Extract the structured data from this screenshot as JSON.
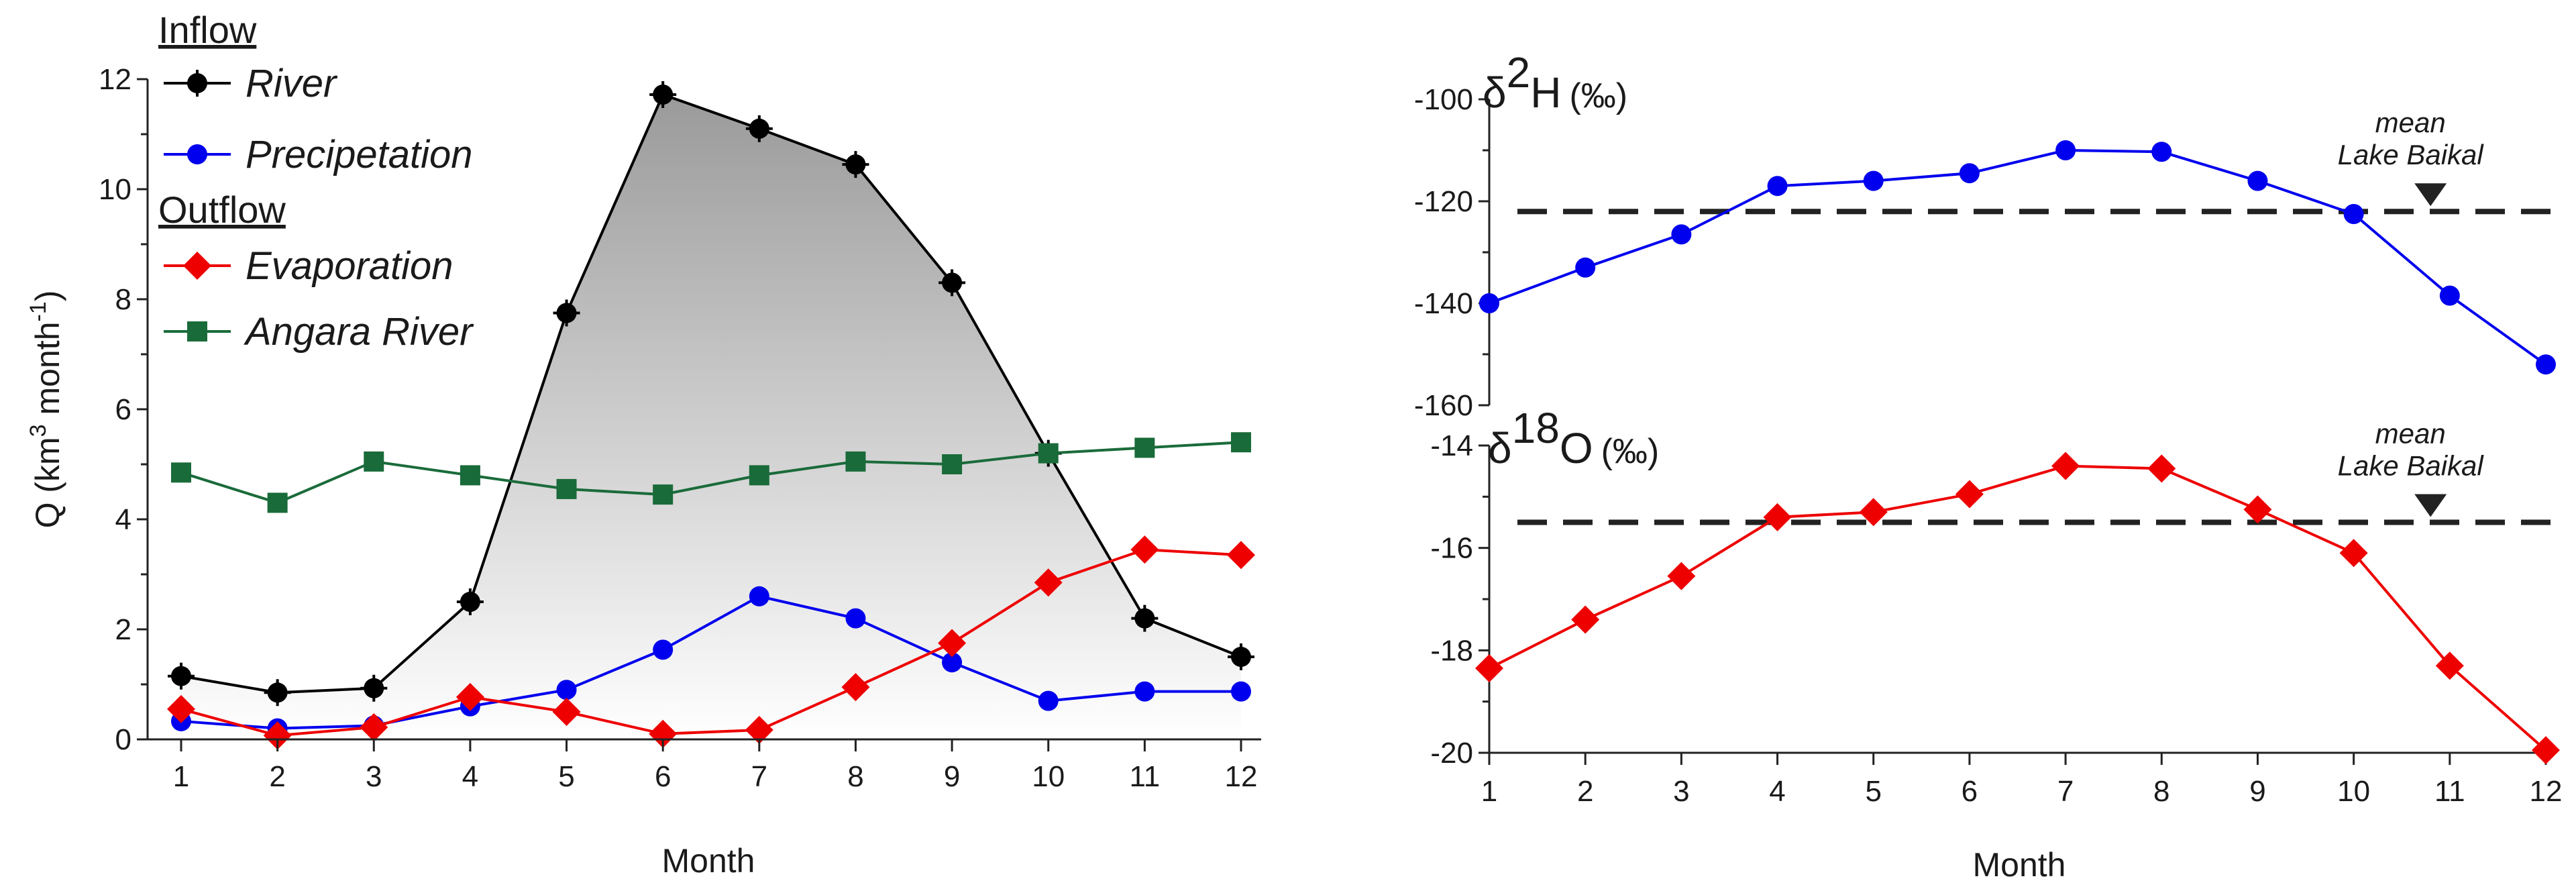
{
  "chart_data": [
    {
      "type": "line",
      "id": "discharge",
      "xlabel": "Month",
      "ylabel": "Q (km3 month-1)",
      "ylabel_parts": {
        "main": "Q (km",
        "sup1": "3",
        "mid": " month",
        "sup2": "-1",
        "end": ")"
      },
      "x": [
        1,
        2,
        3,
        4,
        5,
        6,
        7,
        8,
        9,
        10,
        11,
        12
      ],
      "xlim": [
        1,
        12
      ],
      "ylim": [
        0,
        12
      ],
      "yticks": [
        0,
        2,
        4,
        6,
        8,
        10,
        12
      ],
      "legend": {
        "inflow_heading": "Inflow",
        "outflow_heading": "Outflow"
      },
      "series": [
        {
          "name": "River",
          "group": "Inflow",
          "color": "#000000",
          "marker": "circle-cross",
          "values": [
            1.15,
            0.85,
            0.93,
            2.5,
            7.75,
            11.72,
            11.1,
            10.45,
            8.3,
            5.2,
            2.2,
            1.5
          ]
        },
        {
          "name": "Precipetation",
          "group": "Inflow",
          "color": "#0000ee",
          "marker": "circle",
          "values": [
            0.33,
            0.2,
            0.25,
            0.6,
            0.9,
            1.63,
            2.6,
            2.2,
            1.4,
            0.7,
            0.87,
            0.87
          ]
        },
        {
          "name": "Evaporation",
          "group": "Outflow",
          "color": "#ee0000",
          "marker": "diamond",
          "values": [
            0.55,
            0.07,
            0.22,
            0.77,
            0.5,
            0.1,
            0.17,
            0.95,
            1.75,
            2.85,
            3.45,
            3.35
          ]
        },
        {
          "name": "Angara River",
          "group": "Outflow",
          "color": "#1a6b3a",
          "marker": "square",
          "values": [
            4.85,
            4.3,
            5.05,
            4.8,
            4.55,
            4.45,
            4.8,
            5.05,
            5.0,
            5.2,
            5.3,
            5.4
          ]
        }
      ]
    },
    {
      "type": "line",
      "id": "d2H",
      "title_parts": {
        "delta": "δ",
        "sup": "2",
        "element": "H",
        "unit": "(‰)"
      },
      "xlabel": "",
      "x": [
        1,
        2,
        3,
        4,
        5,
        6,
        7,
        8,
        9,
        10,
        11,
        12
      ],
      "xlim": [
        1,
        12
      ],
      "ylim": [
        -160,
        -100
      ],
      "yticks": [
        -160,
        -140,
        -120,
        -100
      ],
      "reference": {
        "value": -122,
        "label_line1": "mean",
        "label_line2": "Lake Baikal",
        "at_x": 10.8
      },
      "series": [
        {
          "name": "δ2H",
          "color": "#0000ee",
          "marker": "circle",
          "values": [
            -140,
            -133,
            -126.5,
            -117,
            -116,
            -114.5,
            -110,
            -110.3,
            -116,
            -122.5,
            -138.5,
            -152
          ]
        }
      ]
    },
    {
      "type": "line",
      "id": "d18O",
      "title_parts": {
        "delta": "δ",
        "sup": "18",
        "element": "O",
        "unit": "(‰)"
      },
      "xlabel": "Month",
      "x": [
        1,
        2,
        3,
        4,
        5,
        6,
        7,
        8,
        9,
        10,
        11,
        12
      ],
      "xlim": [
        1,
        12
      ],
      "ylim": [
        -20,
        -14
      ],
      "yticks": [
        -20,
        -18,
        -16,
        -14
      ],
      "reference": {
        "value": -15.5,
        "label_line1": "mean",
        "label_line2": "Lake Baikal",
        "at_x": 10.8
      },
      "series": [
        {
          "name": "δ18O",
          "color": "#ee0000",
          "marker": "diamond",
          "values": [
            -18.35,
            -17.4,
            -16.55,
            -15.4,
            -15.3,
            -14.95,
            -14.4,
            -14.45,
            -15.25,
            -16.1,
            -18.3,
            -19.95
          ]
        }
      ]
    }
  ]
}
